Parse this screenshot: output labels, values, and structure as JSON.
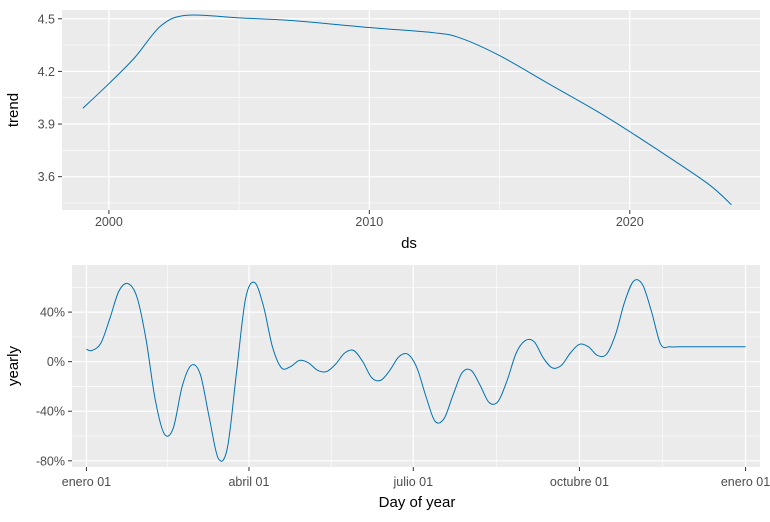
{
  "chart_data": [
    {
      "type": "line",
      "xlabel": "ds",
      "ylabel": "trend",
      "xlim": [
        1998.2,
        2025.0
      ],
      "ylim": [
        3.41,
        4.55
      ],
      "xticks": [
        2000,
        2010,
        2020
      ],
      "xtick_labels": [
        "2000",
        "2010",
        "2020"
      ],
      "yticks": [
        3.6,
        3.9,
        4.2,
        4.5
      ],
      "ytick_labels": [
        "3.6",
        "3.9",
        "4.2",
        "4.5"
      ],
      "grid": true,
      "line_color": "#0072B2",
      "panel_color": "#EBEBEB",
      "series": [
        {
          "x": [
            1999.0,
            2000.0,
            2001.0,
            2002.0,
            2003.0,
            2005.0,
            2007.0,
            2010.0,
            2012.5,
            2013.5,
            2015.0,
            2017.0,
            2019.0,
            2021.0,
            2023.0,
            2023.9
          ],
          "values": [
            3.99,
            4.13,
            4.28,
            4.46,
            4.52,
            4.505,
            4.49,
            4.45,
            4.42,
            4.39,
            4.29,
            4.12,
            3.95,
            3.76,
            3.56,
            3.44
          ]
        }
      ]
    },
    {
      "type": "line",
      "xlabel": "Day of year",
      "ylabel": "yearly",
      "xlim": [
        -8,
        373
      ],
      "ylim": [
        -85,
        78
      ],
      "xticks": [
        0,
        90,
        181,
        273,
        365
      ],
      "xtick_labels": [
        "enero 01",
        "abril 01",
        "julio 01",
        "octubre 01",
        "enero 01"
      ],
      "yticks": [
        -80,
        -40,
        0,
        40
      ],
      "ytick_labels": [
        "-80%",
        "-40%",
        "0%",
        "40%"
      ],
      "grid": true,
      "line_color": "#0072B2",
      "panel_color": "#EBEBEB",
      "series": [
        {
          "x": [
            0,
            3,
            8,
            13,
            18,
            23,
            28,
            33,
            38,
            43,
            48,
            53,
            58,
            63,
            68,
            73,
            78,
            83,
            88,
            93,
            98,
            103,
            108,
            113,
            118,
            123,
            128,
            133,
            138,
            143,
            148,
            153,
            158,
            163,
            168,
            173,
            178,
            183,
            188,
            193,
            198,
            203,
            208,
            213,
            218,
            223,
            228,
            233,
            238,
            243,
            248,
            253,
            258,
            263,
            268,
            273,
            278,
            283,
            288,
            293,
            298,
            303,
            308,
            313,
            318,
            323,
            328,
            333,
            338,
            343,
            348,
            353,
            358,
            365
          ],
          "values": [
            10,
            9,
            15,
            35,
            57,
            63,
            52,
            18,
            -30,
            -58,
            -54,
            -20,
            -3,
            -10,
            -45,
            -78,
            -70,
            -10,
            50,
            64,
            45,
            12,
            -5,
            -4,
            1,
            -1,
            -7,
            -8,
            -2,
            7,
            9,
            0,
            -13,
            -15,
            -7,
            4,
            6,
            -5,
            -28,
            -48,
            -46,
            -27,
            -9,
            -7,
            -19,
            -33,
            -32,
            -15,
            7,
            17,
            16,
            3,
            -5,
            -3,
            7,
            14,
            12,
            5,
            6,
            22,
            48,
            65,
            62,
            40,
            14,
            12,
            12,
            12,
            12,
            12,
            12,
            12,
            12,
            12
          ]
        }
      ]
    }
  ]
}
